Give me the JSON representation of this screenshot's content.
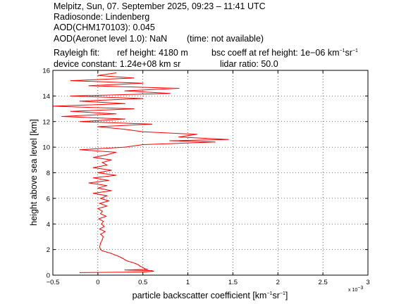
{
  "header": {
    "line1": "Melpitz, Sun, 07. September 2025, 09:23 – 11:41 UTC",
    "line2": "Radiosonde: Lindenberg",
    "line3": "AOD(CHM170103): 0.045",
    "line4a": "AOD(Aeronet level 1.0): NaN",
    "line4b": "(time: not available)",
    "line5a": "Rayleigh fit:",
    "line5b": "ref height: 4180 m",
    "line5c_pre": "bsc coeff at ref height: 1e−06 km",
    "line5c_sup1": "−1",
    "line5c_mid": "sr",
    "line5c_sup2": "−1",
    "line6a": "device constant: 1.24e+08 km sr",
    "line6b": "lidar ratio: 50.0"
  },
  "chart_data": {
    "type": "line",
    "xlabel_pre": "particle backscatter coefficient [km",
    "xlabel_sup1": "−1",
    "xlabel_mid": "sr",
    "xlabel_sup2": "−1",
    "xlabel_post": "]",
    "ylabel": "height above sea level [km]",
    "x_multiplier": "x 10",
    "x_multiplier_exp": "−3",
    "xlim": [
      -0.5,
      3.0
    ],
    "ylim": [
      0,
      16
    ],
    "xticks": [
      -0.5,
      0,
      0.5,
      1,
      1.5,
      2,
      2.5,
      3
    ],
    "xtick_labels": [
      "−0.5",
      "0",
      "0.5",
      "1",
      "1.5",
      "2",
      "2.5",
      "3"
    ],
    "yticks": [
      0,
      2,
      4,
      6,
      8,
      10,
      12,
      14,
      16
    ],
    "ytick_labels": [
      "0",
      "2",
      "4",
      "6",
      "8",
      "10",
      "12",
      "14",
      "16"
    ],
    "grid": true,
    "series_color": "#ff0000",
    "profile": [
      [
        0.2,
        -0.2
      ],
      [
        0.25,
        0.5
      ],
      [
        0.3,
        0.62
      ],
      [
        0.35,
        0.6
      ],
      [
        0.4,
        0.3
      ],
      [
        0.45,
        0.55
      ],
      [
        0.5,
        0.52
      ],
      [
        0.6,
        0.5
      ],
      [
        0.7,
        0.47
      ],
      [
        0.8,
        0.45
      ],
      [
        0.9,
        0.42
      ],
      [
        1.0,
        0.38
      ],
      [
        1.1,
        0.33
      ],
      [
        1.2,
        0.3
      ],
      [
        1.3,
        0.28
      ],
      [
        1.4,
        0.25
      ],
      [
        1.5,
        0.22
      ],
      [
        1.6,
        0.18
      ],
      [
        1.7,
        0.15
      ],
      [
        1.8,
        0.1
      ],
      [
        1.9,
        0.05
      ],
      [
        2.0,
        0.03
      ],
      [
        2.2,
        0.02
      ],
      [
        2.5,
        0.03
      ],
      [
        2.8,
        0.05
      ],
      [
        3.0,
        0.06
      ],
      [
        3.2,
        0.03
      ],
      [
        3.4,
        0.08
      ],
      [
        3.6,
        0.02
      ],
      [
        3.8,
        0.07
      ],
      [
        4.0,
        0.04
      ],
      [
        4.2,
        0.06
      ],
      [
        4.4,
        0.01
      ],
      [
        4.6,
        0.09
      ],
      [
        4.8,
        0.03
      ],
      [
        5.0,
        0.05
      ],
      [
        5.2,
        0.0
      ],
      [
        5.4,
        0.1
      ],
      [
        5.6,
        0.02
      ],
      [
        5.8,
        0.12
      ],
      [
        6.0,
        0.03
      ],
      [
        6.2,
        0.1
      ],
      [
        6.4,
        -0.05
      ],
      [
        6.6,
        0.15
      ],
      [
        6.8,
        0.0
      ],
      [
        7.0,
        0.1
      ],
      [
        7.2,
        -0.1
      ],
      [
        7.4,
        0.12
      ],
      [
        7.6,
        -0.05
      ],
      [
        7.8,
        0.2
      ],
      [
        8.0,
        0.0
      ],
      [
        8.2,
        0.15
      ],
      [
        8.4,
        -0.05
      ],
      [
        8.6,
        0.1
      ],
      [
        8.8,
        0.05
      ],
      [
        9.0,
        0.15
      ],
      [
        9.2,
        -0.05
      ],
      [
        9.4,
        0.1
      ],
      [
        9.6,
        0.2
      ],
      [
        9.8,
        -0.2
      ],
      [
        10.0,
        0.3
      ],
      [
        10.2,
        0.5
      ],
      [
        10.4,
        1.3
      ],
      [
        10.5,
        0.8
      ],
      [
        10.6,
        1.45
      ],
      [
        10.8,
        0.9
      ],
      [
        11.0,
        1.1
      ],
      [
        11.2,
        0.5
      ],
      [
        11.4,
        0.3
      ],
      [
        11.6,
        0.0
      ],
      [
        11.8,
        0.6
      ],
      [
        12.0,
        -0.2
      ],
      [
        12.2,
        0.3
      ],
      [
        12.4,
        -0.4
      ],
      [
        12.6,
        0.2
      ],
      [
        12.8,
        -0.3
      ],
      [
        13.0,
        0.4
      ],
      [
        13.2,
        -0.5
      ],
      [
        13.4,
        0.3
      ],
      [
        13.6,
        -0.2
      ],
      [
        13.8,
        0.5
      ],
      [
        14.0,
        -0.3
      ],
      [
        14.2,
        0.8
      ],
      [
        14.4,
        0.3
      ],
      [
        14.6,
        0.9
      ],
      [
        14.8,
        -0.1
      ],
      [
        15.0,
        0.5
      ],
      [
        15.2,
        -0.3
      ],
      [
        15.4,
        0.4
      ],
      [
        15.6,
        0.0
      ],
      [
        15.8,
        0.2
      ]
    ]
  }
}
